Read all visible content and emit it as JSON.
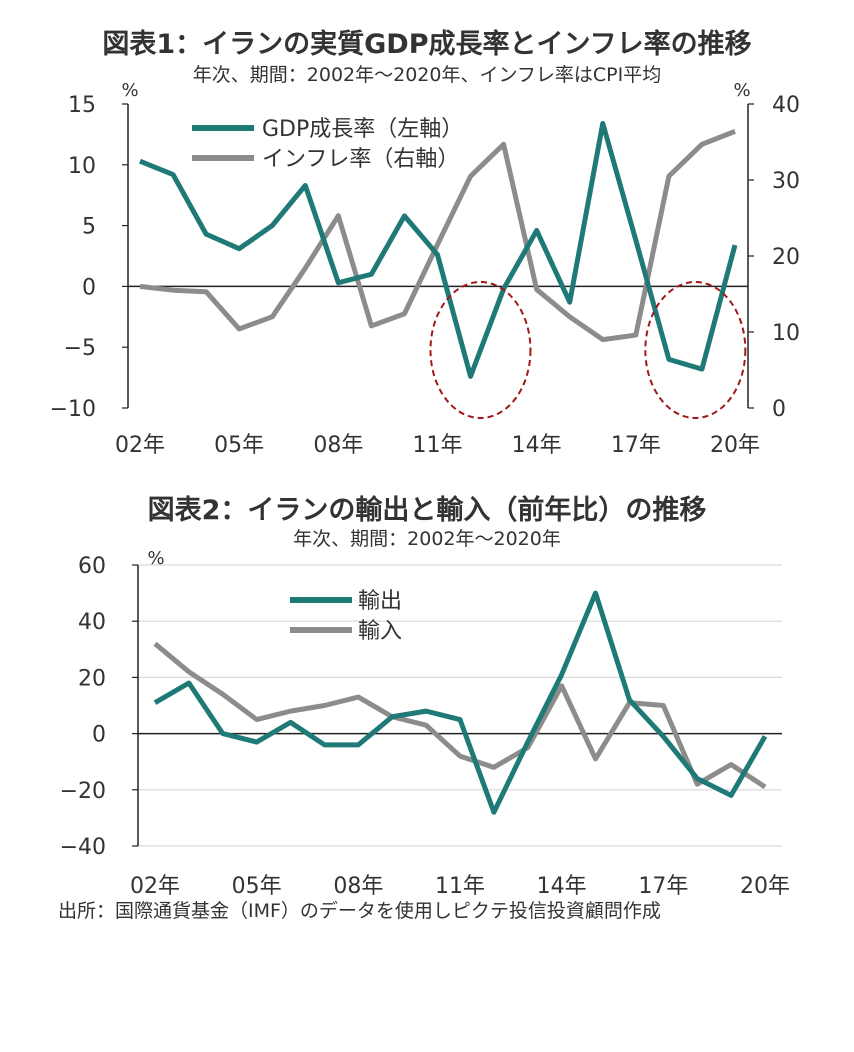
{
  "source": "出所：国際通貨基金（IMF）のデータを使用しピクテ投信投資顧問作成",
  "colors": {
    "teal": "#1f7a77",
    "gray": "#8c8c8c",
    "circle": "#a01818",
    "axis": "#222222"
  },
  "chart_data": [
    {
      "type": "line",
      "title": "図表1：イランの実質GDP成長率とインフレ率の推移",
      "subtitle": "年次、期間：2002年～2020年、インフレ率はCPI平均",
      "y_unit_left": "%",
      "y_unit_right": "%",
      "x": [
        2002,
        2003,
        2004,
        2005,
        2006,
        2007,
        2008,
        2009,
        2010,
        2011,
        2012,
        2013,
        2014,
        2015,
        2016,
        2017,
        2018,
        2019,
        2020
      ],
      "x_tick_labels": [
        "02年",
        "05年",
        "08年",
        "11年",
        "14年",
        "17年",
        "20年"
      ],
      "x_tick_years": [
        2002,
        2005,
        2008,
        2011,
        2014,
        2017,
        2020
      ],
      "ylim_left": [
        -10,
        15
      ],
      "ylim_right": [
        0,
        40
      ],
      "y_ticks_left": [
        "15",
        "10",
        "5",
        "0",
        "−5",
        "−10"
      ],
      "y_ticks_right": [
        "40",
        "30",
        "20",
        "10",
        "0"
      ],
      "legend": [
        "GDP成長率（左軸）",
        "インフレ率（右軸）"
      ],
      "series": [
        {
          "name": "GDP成長率（左軸）",
          "axis": "left",
          "values": [
            10.3,
            9.2,
            4.3,
            3.1,
            5.0,
            8.3,
            0.3,
            1.0,
            5.8,
            2.6,
            -7.4,
            -0.2,
            4.6,
            -1.3,
            13.4,
            3.8,
            -6.0,
            -6.8,
            3.4
          ]
        },
        {
          "name": "インフレ率（右軸）",
          "axis": "right",
          "values": [
            16.0,
            15.5,
            15.3,
            10.4,
            12.0,
            18.4,
            25.3,
            10.8,
            12.4,
            21.5,
            30.5,
            34.7,
            15.6,
            12.0,
            9.0,
            9.6,
            30.5,
            34.7,
            36.4
          ]
        }
      ],
      "highlights": [
        {
          "x_center": 2012.3
        },
        {
          "x_center": 2018.8
        }
      ]
    },
    {
      "type": "line",
      "title": "図表2：イランの輸出と輸入（前年比）の推移",
      "subtitle": "年次、期間：2002年～2020年",
      "y_unit": "%",
      "x": [
        2002,
        2003,
        2004,
        2005,
        2006,
        2007,
        2008,
        2009,
        2010,
        2011,
        2012,
        2013,
        2014,
        2015,
        2016,
        2017,
        2018,
        2019,
        2020
      ],
      "x_tick_labels": [
        "02年",
        "05年",
        "08年",
        "11年",
        "14年",
        "17年",
        "20年"
      ],
      "x_tick_years": [
        2002,
        2005,
        2008,
        2011,
        2014,
        2017,
        2020
      ],
      "ylim": [
        -40,
        60
      ],
      "y_ticks": [
        "60",
        "40",
        "20",
        "0",
        "−20",
        "−40"
      ],
      "grid": true,
      "legend": [
        "輸出",
        "輸入"
      ],
      "series": [
        {
          "name": "輸出",
          "values": [
            11,
            18,
            0,
            -3,
            4,
            -4,
            -4,
            6,
            8,
            5,
            -28,
            -3,
            21,
            50,
            12,
            -1,
            -16,
            -22,
            -1
          ]
        },
        {
          "name": "輸入",
          "values": [
            32,
            22,
            14,
            5,
            8,
            10,
            13,
            6,
            3,
            -8,
            -12,
            -5,
            17,
            -9,
            11,
            10,
            -18,
            -11,
            -19
          ]
        }
      ]
    }
  ]
}
